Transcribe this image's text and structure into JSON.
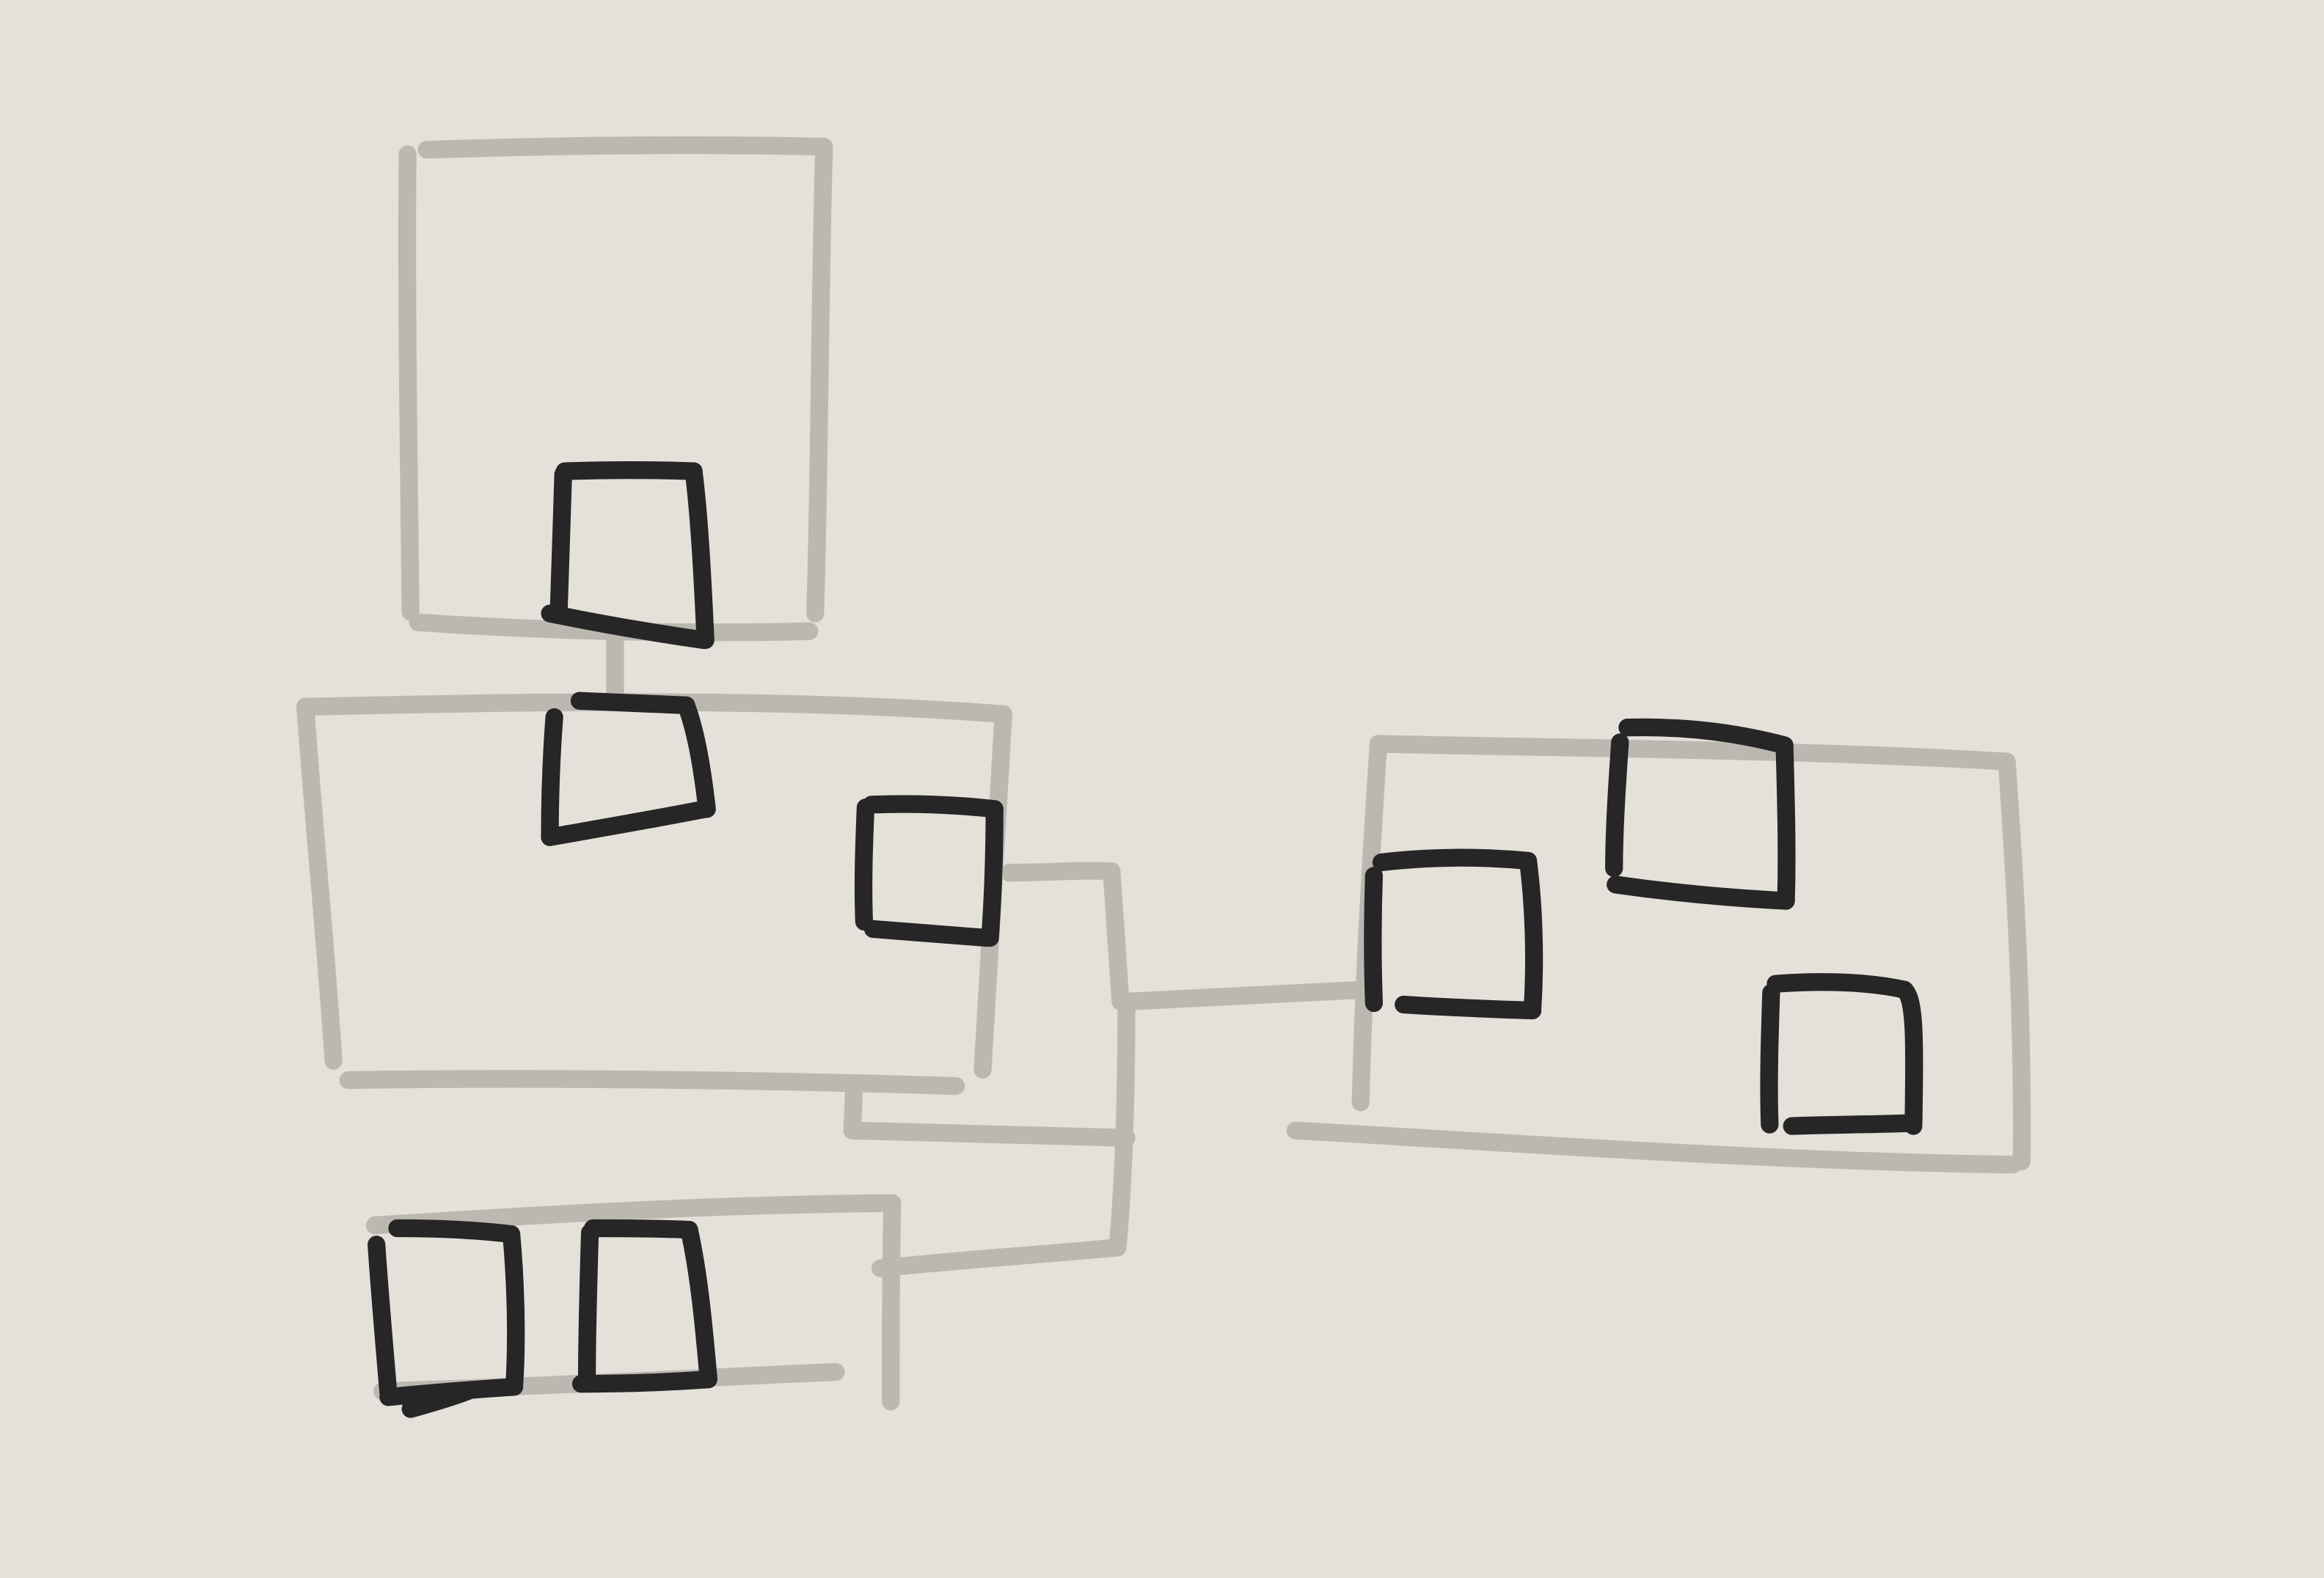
{
  "sketch": {
    "background_color": "#e5e1da",
    "container_stroke_color": "#bcb8b1",
    "element_stroke_color": "#262626",
    "containers": [
      {
        "id": "container-top",
        "element_count": 1
      },
      {
        "id": "container-middle",
        "element_count": 2
      },
      {
        "id": "container-bottom",
        "element_count": 2
      },
      {
        "id": "container-right",
        "element_count": 3
      }
    ],
    "connectors": [
      {
        "from": "container-top",
        "to": "container-middle"
      },
      {
        "from": "container-middle",
        "to": "container-right"
      },
      {
        "from": "container-middle",
        "to": "container-bottom"
      }
    ]
  }
}
